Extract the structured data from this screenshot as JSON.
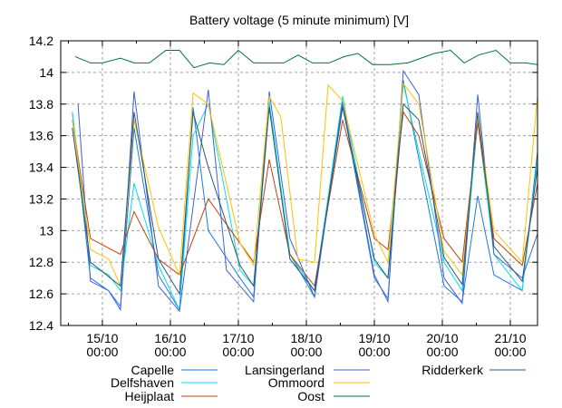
{
  "chart_data": {
    "type": "line",
    "title": "Battery voltage (5 minute minimum) [V]",
    "xlabel": "",
    "ylabel": "",
    "x_units": "hours since 15/10 00:00",
    "xlim": [
      -14.7,
      153.6
    ],
    "ylim": [
      12.4,
      14.2
    ],
    "grid": true,
    "legend_placement": "bottom",
    "yticks": [
      {
        "v": 12.4,
        "label": "12.4"
      },
      {
        "v": 12.6,
        "label": "12.6"
      },
      {
        "v": 12.8,
        "label": "12.8"
      },
      {
        "v": 13.0,
        "label": "13"
      },
      {
        "v": 13.2,
        "label": "13.2"
      },
      {
        "v": 13.4,
        "label": "13.4"
      },
      {
        "v": 13.6,
        "label": "13.6"
      },
      {
        "v": 13.8,
        "label": "13.8"
      },
      {
        "v": 14.0,
        "label": "14"
      },
      {
        "v": 14.2,
        "label": "14.2"
      }
    ],
    "xticks": [
      {
        "v": 0,
        "date": "15/10",
        "time": "00:00"
      },
      {
        "v": 24,
        "date": "16/10",
        "time": "00:00"
      },
      {
        "v": 48,
        "date": "17/10",
        "time": "00:00"
      },
      {
        "v": 72,
        "date": "18/10",
        "time": "00:00"
      },
      {
        "v": 96,
        "date": "19/10",
        "time": "00:00"
      },
      {
        "v": 120,
        "date": "20/10",
        "time": "00:00"
      },
      {
        "v": 144,
        "date": "21/10",
        "time": "00:00"
      }
    ],
    "series": [
      {
        "name": "Capelle",
        "color": "#1e78e6",
        "points": [
          [
            -10.6,
            13.75
          ],
          [
            -4.2,
            12.7
          ],
          [
            2.2,
            12.62
          ],
          [
            6.4,
            12.52
          ],
          [
            11.2,
            13.65
          ],
          [
            19.8,
            12.72
          ],
          [
            27.2,
            12.5
          ],
          [
            32,
            13.78
          ],
          [
            37.4,
            13.0
          ],
          [
            48.6,
            12.7
          ],
          [
            53.4,
            12.58
          ],
          [
            58.9,
            13.8
          ],
          [
            66.2,
            12.85
          ],
          [
            74.9,
            12.58
          ],
          [
            84.8,
            13.8
          ],
          [
            96,
            12.7
          ],
          [
            100.8,
            12.57
          ],
          [
            106.2,
            13.95
          ],
          [
            120.6,
            12.65
          ],
          [
            127,
            12.55
          ],
          [
            132.5,
            13.22
          ],
          [
            138.2,
            12.72
          ],
          [
            148.2,
            12.62
          ],
          [
            153.6,
            13.5
          ]
        ]
      },
      {
        "name": "Delfshaven",
        "color": "#00e0e8",
        "points": [
          [
            -10.6,
            13.75
          ],
          [
            -4.2,
            12.78
          ],
          [
            2.2,
            12.72
          ],
          [
            6.4,
            12.62
          ],
          [
            11.2,
            13.3
          ],
          [
            19.8,
            12.78
          ],
          [
            27.2,
            12.5
          ],
          [
            32,
            13.6
          ],
          [
            37.4,
            13.8
          ],
          [
            48.6,
            12.75
          ],
          [
            53.4,
            12.65
          ],
          [
            58.9,
            13.82
          ],
          [
            66.2,
            12.85
          ],
          [
            74.9,
            12.62
          ],
          [
            84.8,
            13.85
          ],
          [
            96,
            12.8
          ],
          [
            100.8,
            12.7
          ],
          [
            106.2,
            13.93
          ],
          [
            120.6,
            12.8
          ],
          [
            127,
            12.62
          ],
          [
            132.5,
            13.7
          ],
          [
            138.2,
            12.85
          ],
          [
            148.2,
            12.62
          ],
          [
            153.6,
            13.45
          ]
        ]
      },
      {
        "name": "Heijplaat",
        "color": "#c04010",
        "points": [
          [
            -10.6,
            13.7
          ],
          [
            -4.2,
            12.95
          ],
          [
            6.4,
            12.85
          ],
          [
            11.2,
            13.12
          ],
          [
            19.8,
            12.82
          ],
          [
            27.2,
            12.72
          ],
          [
            37.4,
            13.2
          ],
          [
            48.6,
            12.92
          ],
          [
            53.4,
            12.8
          ],
          [
            58.9,
            13.45
          ],
          [
            66.2,
            12.85
          ],
          [
            74.9,
            12.65
          ],
          [
            84.8,
            13.7
          ],
          [
            96,
            12.95
          ],
          [
            100.8,
            12.88
          ],
          [
            106.2,
            13.75
          ],
          [
            111.7,
            13.6
          ],
          [
            120.6,
            12.95
          ],
          [
            127,
            12.8
          ],
          [
            132.5,
            13.68
          ],
          [
            138.2,
            12.95
          ],
          [
            148.2,
            12.78
          ],
          [
            153.6,
            13.3
          ]
        ]
      },
      {
        "name": "Lansingerland",
        "color": "#4060d8",
        "points": [
          [
            -8.6,
            13.8
          ],
          [
            -4.2,
            12.68
          ],
          [
            2.2,
            12.62
          ],
          [
            6.4,
            12.5
          ],
          [
            11.2,
            13.88
          ],
          [
            19.8,
            12.65
          ],
          [
            27.2,
            12.49
          ],
          [
            37.4,
            13.89
          ],
          [
            43.8,
            12.75
          ],
          [
            53.4,
            12.55
          ],
          [
            58.9,
            13.88
          ],
          [
            66.2,
            12.95
          ],
          [
            74.9,
            12.58
          ],
          [
            84.8,
            13.82
          ],
          [
            96,
            12.72
          ],
          [
            100.8,
            12.55
          ],
          [
            106.2,
            14.01
          ],
          [
            111.7,
            13.86
          ],
          [
            120.6,
            12.7
          ],
          [
            127,
            12.54
          ],
          [
            132.5,
            13.86
          ],
          [
            138.2,
            12.85
          ],
          [
            148.2,
            12.7
          ],
          [
            153.6,
            12.98
          ]
        ]
      },
      {
        "name": "Ommoord",
        "color": "#ffc000",
        "points": [
          [
            -10.6,
            13.7
          ],
          [
            -4.2,
            12.88
          ],
          [
            2.2,
            12.82
          ],
          [
            6.4,
            12.65
          ],
          [
            11.2,
            13.7
          ],
          [
            19.8,
            13.02
          ],
          [
            27.2,
            12.72
          ],
          [
            32,
            13.87
          ],
          [
            37.4,
            13.8
          ],
          [
            48.6,
            12.92
          ],
          [
            53.4,
            12.78
          ],
          [
            58.9,
            13.85
          ],
          [
            63,
            13.72
          ],
          [
            69,
            12.82
          ],
          [
            74.9,
            12.8
          ],
          [
            79.7,
            13.92
          ],
          [
            84.8,
            13.82
          ],
          [
            96,
            12.98
          ],
          [
            100.8,
            12.8
          ],
          [
            106.2,
            13.93
          ],
          [
            111.7,
            13.8
          ],
          [
            120.6,
            12.87
          ],
          [
            127,
            12.72
          ],
          [
            132.5,
            13.72
          ],
          [
            138.2,
            13.0
          ],
          [
            148.2,
            12.8
          ],
          [
            153.6,
            13.85
          ]
        ]
      },
      {
        "name": "Oost",
        "color": "#007040",
        "points": [
          [
            -9.6,
            14.1
          ],
          [
            -4.2,
            14.06
          ],
          [
            0,
            14.06
          ],
          [
            6.4,
            14.09
          ],
          [
            11.2,
            14.06
          ],
          [
            16.6,
            14.06
          ],
          [
            22.4,
            14.14
          ],
          [
            27.2,
            14.14
          ],
          [
            32.3,
            14.03
          ],
          [
            37.8,
            14.06
          ],
          [
            42.9,
            14.05
          ],
          [
            48,
            14.14
          ],
          [
            53.4,
            14.06
          ],
          [
            64,
            14.06
          ],
          [
            69.1,
            14.11
          ],
          [
            74.2,
            14.06
          ],
          [
            80,
            14.06
          ],
          [
            85.4,
            14.1
          ],
          [
            90.2,
            14.12
          ],
          [
            95.4,
            14.05
          ],
          [
            101.4,
            14.05
          ],
          [
            107.8,
            14.06
          ],
          [
            117.1,
            14.12
          ],
          [
            122.9,
            14.14
          ],
          [
            127.7,
            14.06
          ],
          [
            132.8,
            14.11
          ],
          [
            138.9,
            14.14
          ],
          [
            144,
            14.06
          ],
          [
            149.4,
            14.06
          ],
          [
            153.6,
            14.05
          ]
        ]
      },
      {
        "name": "Ridderkerk",
        "color": "#2a5a70",
        "points": [
          [
            -10.6,
            13.65
          ],
          [
            -4.2,
            12.8
          ],
          [
            6.4,
            12.65
          ],
          [
            11.2,
            13.75
          ],
          [
            19.8,
            12.82
          ],
          [
            27.2,
            12.6
          ],
          [
            32,
            13.75
          ],
          [
            37.4,
            13.4
          ],
          [
            48.6,
            12.78
          ],
          [
            53.4,
            12.65
          ],
          [
            58.9,
            13.78
          ],
          [
            66.2,
            12.82
          ],
          [
            74.9,
            12.62
          ],
          [
            84.8,
            13.78
          ],
          [
            96,
            12.82
          ],
          [
            100.8,
            12.7
          ],
          [
            106.2,
            13.8
          ],
          [
            111.7,
            13.7
          ],
          [
            120.6,
            12.83
          ],
          [
            127,
            12.66
          ],
          [
            132.5,
            13.75
          ],
          [
            138.2,
            12.9
          ],
          [
            148.2,
            12.68
          ],
          [
            153.6,
            13.4
          ]
        ]
      }
    ]
  }
}
